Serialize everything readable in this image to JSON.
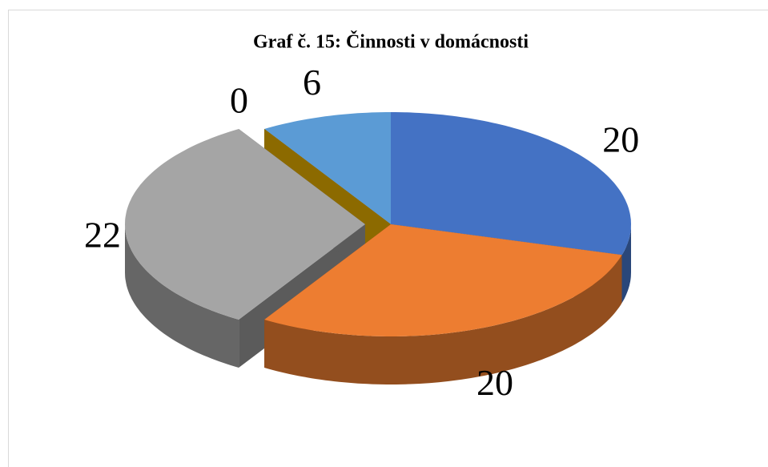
{
  "chart_data": {
    "type": "pie",
    "title": "Graf č. 15: Činnosti v domácnosti",
    "values": [
      20,
      20,
      22,
      0,
      6
    ],
    "colors": [
      "#4472c4",
      "#ed7d31",
      "#a5a5a5",
      "#ffc000",
      "#5b9bd5"
    ],
    "exploded": [
      false,
      false,
      true,
      false,
      false
    ]
  }
}
